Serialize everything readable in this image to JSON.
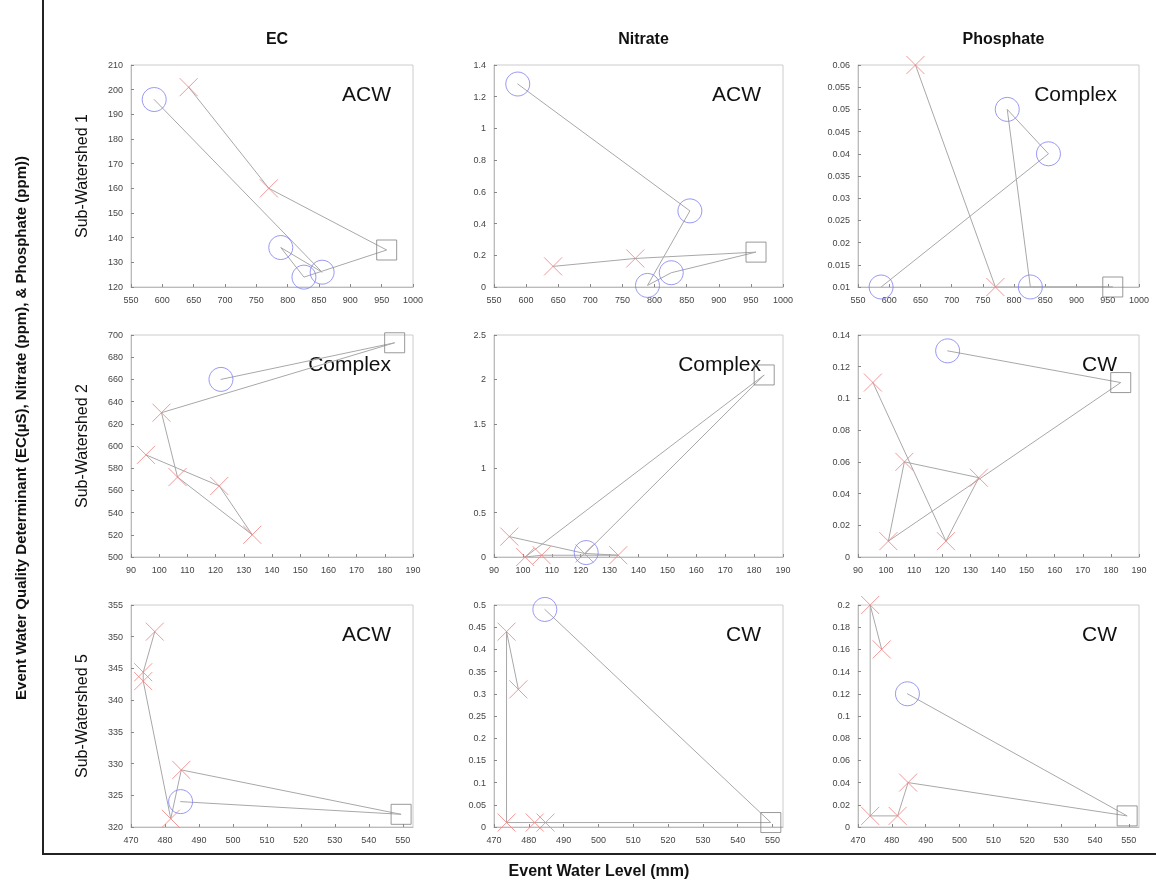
{
  "chart_data": [
    {
      "type": "line",
      "title": "EC",
      "ylabel": "Sub-Watershed 1",
      "xlim": [
        550,
        1000
      ],
      "xticks": [
        550,
        600,
        650,
        700,
        750,
        800,
        850,
        900,
        950,
        1000
      ],
      "ylim": [
        120,
        210
      ],
      "yticks": [
        120,
        130,
        140,
        150,
        160,
        170,
        180,
        190,
        200,
        210
      ],
      "annotations": [
        "ACW"
      ],
      "series": [
        {
          "type": "line",
          "marker": "none",
          "color": "#a8a8a8",
          "x": [
            642,
            770,
            958,
            826,
            789,
            855,
            587
          ],
          "values": [
            201,
            160,
            135,
            124,
            136,
            126,
            196
          ]
        },
        {
          "type": "scatter",
          "marker": "cross",
          "color": "#f08080",
          "x": [
            642,
            770
          ],
          "values": [
            201,
            160
          ]
        },
        {
          "type": "scatter",
          "marker": "square",
          "color": "#808080",
          "x": [
            958
          ],
          "values": [
            135
          ]
        },
        {
          "type": "scatter",
          "marker": "circle",
          "color": "#8080f0",
          "x": [
            826,
            789,
            855,
            587
          ],
          "values": [
            124,
            136,
            126,
            196
          ]
        }
      ]
    },
    {
      "type": "line",
      "title": "Nitrate",
      "xlim": [
        550,
        1000
      ],
      "xticks": [
        550,
        600,
        650,
        700,
        750,
        800,
        850,
        900,
        950,
        1000
      ],
      "ylim": [
        0,
        1.4
      ],
      "yticks": [
        0,
        0.2,
        0.4,
        0.6,
        0.8,
        1,
        1.2,
        1.4
      ],
      "annotations": [
        "ACW"
      ],
      "series": [
        {
          "type": "line",
          "marker": "none",
          "color": "#a8a8a8",
          "x": [
            642,
            770,
            958,
            826,
            789,
            855,
            587
          ],
          "values": [
            0.13,
            0.18,
            0.22,
            0.09,
            0.01,
            0.48,
            1.28
          ]
        },
        {
          "type": "scatter",
          "marker": "cross",
          "color": "#f08080",
          "x": [
            642,
            770
          ],
          "values": [
            0.13,
            0.18
          ]
        },
        {
          "type": "scatter",
          "marker": "square",
          "color": "#808080",
          "x": [
            958
          ],
          "values": [
            0.22
          ]
        },
        {
          "type": "scatter",
          "marker": "circle",
          "color": "#8080f0",
          "x": [
            826,
            789,
            855,
            587
          ],
          "values": [
            0.09,
            0.01,
            0.48,
            1.28
          ]
        }
      ]
    },
    {
      "type": "line",
      "title": "Phosphate",
      "xlim": [
        550,
        1000
      ],
      "xticks": [
        550,
        600,
        650,
        700,
        750,
        800,
        850,
        900,
        950,
        1000
      ],
      "ylim": [
        0.01,
        0.06
      ],
      "yticks": [
        0.01,
        0.015,
        0.02,
        0.025,
        0.03,
        0.035,
        0.04,
        0.045,
        0.05,
        0.055,
        0.06
      ],
      "annotations": [
        "Complex"
      ],
      "series": [
        {
          "type": "line",
          "marker": "none",
          "color": "#a8a8a8",
          "x": [
            642,
            770,
            958,
            826,
            789,
            855,
            587
          ],
          "values": [
            0.06,
            0.01,
            0.01,
            0.01,
            0.05,
            0.04,
            0.01
          ]
        },
        {
          "type": "scatter",
          "marker": "cross",
          "color": "#f08080",
          "x": [
            642,
            770
          ],
          "values": [
            0.06,
            0.01
          ]
        },
        {
          "type": "scatter",
          "marker": "square",
          "color": "#808080",
          "x": [
            958
          ],
          "values": [
            0.01
          ]
        },
        {
          "type": "scatter",
          "marker": "circle",
          "color": "#8080f0",
          "x": [
            826,
            789,
            855,
            587
          ],
          "values": [
            0.01,
            0.05,
            0.04,
            0.01
          ]
        }
      ]
    },
    {
      "type": "line",
      "ylabel": "Sub-Watershed 2",
      "xlim": [
        90,
        190
      ],
      "xticks": [
        90,
        100,
        110,
        120,
        130,
        140,
        150,
        160,
        170,
        180,
        190
      ],
      "ylim": [
        500,
        700
      ],
      "yticks": [
        500,
        520,
        540,
        560,
        580,
        600,
        620,
        640,
        660,
        680,
        700
      ],
      "annotations": [
        "Complex",
        "Event Water Quality Determinant (EC(µS), Nitrate (ppm), & Phosphate (ppm))"
      ],
      "series": [
        {
          "type": "line",
          "marker": "none",
          "color": "#a8a8a8",
          "x": [
            95.3,
            121.3,
            133,
            106.5,
            100.8,
            183.5,
            121.9
          ],
          "values": [
            592,
            564,
            520,
            572,
            630,
            693,
            660
          ]
        },
        {
          "type": "scatter",
          "marker": "cross",
          "color": "#f08080",
          "x": [
            95.3,
            121.3,
            133,
            106.5,
            100.8
          ],
          "values": [
            592,
            564,
            520,
            572,
            630
          ]
        },
        {
          "type": "scatter",
          "marker": "square",
          "color": "#808080",
          "x": [
            183.5
          ],
          "values": [
            693
          ]
        },
        {
          "type": "scatter",
          "marker": "circle",
          "color": "#8080f0",
          "x": [
            121.9
          ],
          "values": [
            660
          ]
        }
      ]
    },
    {
      "type": "line",
      "xlim": [
        90,
        190
      ],
      "xticks": [
        90,
        100,
        110,
        120,
        130,
        140,
        150,
        160,
        170,
        180,
        190
      ],
      "ylim": [
        0,
        2.5
      ],
      "yticks": [
        0,
        0.5,
        1,
        1.5,
        2,
        2.5
      ],
      "annotations": [
        "Complex"
      ],
      "series": [
        {
          "type": "line",
          "marker": "none",
          "color": "#a8a8a8",
          "x": [
            95.3,
            121.3,
            133,
            106.5,
            100.8,
            183.5,
            121.9
          ],
          "values": [
            0.23,
            0.04,
            0.02,
            0.02,
            0,
            2.05,
            0.05
          ]
        },
        {
          "type": "scatter",
          "marker": "cross",
          "color": "#f08080",
          "x": [
            95.3,
            121.3,
            133,
            106.5,
            100.8
          ],
          "values": [
            0.23,
            0.04,
            0.02,
            0.02,
            0
          ]
        },
        {
          "type": "scatter",
          "marker": "square",
          "color": "#808080",
          "x": [
            183.5
          ],
          "values": [
            2.05
          ]
        },
        {
          "type": "scatter",
          "marker": "circle",
          "color": "#8080f0",
          "x": [
            121.9
          ],
          "values": [
            0.05
          ]
        }
      ]
    },
    {
      "type": "line",
      "xlim": [
        90,
        190
      ],
      "xticks": [
        90,
        100,
        110,
        120,
        130,
        140,
        150,
        160,
        170,
        180,
        190
      ],
      "ylim": [
        0,
        0.14
      ],
      "yticks": [
        0,
        0.02,
        0.04,
        0.06,
        0.08,
        0.1,
        0.12,
        0.14
      ],
      "annotations": [
        "CW"
      ],
      "series": [
        {
          "type": "line",
          "marker": "none",
          "color": "#a8a8a8",
          "x": [
            95.3,
            121.3,
            133,
            106.5,
            100.8,
            183.5,
            121.9
          ],
          "values": [
            0.11,
            0.01,
            0.05,
            0.06,
            0.01,
            0.11,
            0.13
          ]
        },
        {
          "type": "scatter",
          "marker": "cross",
          "color": "#f08080",
          "x": [
            95.3,
            121.3,
            133,
            106.5,
            100.8
          ],
          "values": [
            0.11,
            0.01,
            0.05,
            0.06,
            0.01
          ]
        },
        {
          "type": "scatter",
          "marker": "square",
          "color": "#808080",
          "x": [
            183.5
          ],
          "values": [
            0.11
          ]
        },
        {
          "type": "scatter",
          "marker": "circle",
          "color": "#8080f0",
          "x": [
            121.9
          ],
          "values": [
            0.13
          ]
        }
      ]
    },
    {
      "type": "line",
      "ylabel": "Sub-Watershed 5",
      "xlim": [
        470,
        553
      ],
      "xticks": [
        470,
        480,
        490,
        500,
        510,
        520,
        530,
        540,
        550
      ],
      "ylim": [
        320,
        355
      ],
      "yticks": [
        320,
        325,
        330,
        335,
        340,
        345,
        350,
        355
      ],
      "annotations": [
        "ACW"
      ],
      "series": [
        {
          "type": "line",
          "marker": "none",
          "color": "#a8a8a8",
          "x": [
            477,
            473.6,
            473.6,
            481.7,
            484.8,
            549.5,
            484.6
          ],
          "values": [
            350.8,
            344.4,
            343,
            321.3,
            329,
            322,
            324
          ]
        },
        {
          "type": "scatter",
          "marker": "cross",
          "color": "#f08080",
          "x": [
            477,
            473.6,
            473.6,
            481.7,
            484.8
          ],
          "values": [
            350.8,
            344.4,
            343,
            321.3,
            329
          ]
        },
        {
          "type": "scatter",
          "marker": "square",
          "color": "#808080",
          "x": [
            549.5
          ],
          "values": [
            322
          ]
        },
        {
          "type": "scatter",
          "marker": "circle",
          "color": "#8080f0",
          "x": [
            484.6
          ],
          "values": [
            324
          ]
        }
      ]
    },
    {
      "type": "line",
      "xlim": [
        470,
        553
      ],
      "xticks": [
        470,
        480,
        490,
        500,
        510,
        520,
        530,
        540,
        550
      ],
      "ylim": [
        0,
        0.5
      ],
      "yticks": [
        0,
        0.05,
        0.1,
        0.15,
        0.2,
        0.25,
        0.3,
        0.35,
        0.4,
        0.45,
        0.5
      ],
      "annotations": [
        "CW",
        "Event Water Level (mm)"
      ],
      "series": [
        {
          "type": "line",
          "marker": "none",
          "color": "#a8a8a8",
          "x": [
            477,
            473.6,
            473.6,
            481.7,
            484.8,
            549.5,
            484.6
          ],
          "values": [
            0.31,
            0.44,
            0.01,
            0.01,
            0.01,
            0.01,
            0.49
          ]
        },
        {
          "type": "scatter",
          "marker": "cross",
          "color": "#f08080",
          "x": [
            477,
            473.6,
            473.6,
            481.7,
            484.8
          ],
          "values": [
            0.31,
            0.44,
            0.01,
            0.01,
            0.01
          ]
        },
        {
          "type": "scatter",
          "marker": "square",
          "color": "#808080",
          "x": [
            549.5
          ],
          "values": [
            0.01
          ]
        },
        {
          "type": "scatter",
          "marker": "circle",
          "color": "#8080f0",
          "x": [
            484.6
          ],
          "values": [
            0.49
          ]
        }
      ]
    },
    {
      "type": "line",
      "xlim": [
        470,
        553
      ],
      "xticks": [
        470,
        480,
        490,
        500,
        510,
        520,
        530,
        540,
        550
      ],
      "ylim": [
        0,
        0.2
      ],
      "yticks": [
        0,
        0.02,
        0.04,
        0.06,
        0.08,
        0.1,
        0.12,
        0.14,
        0.16,
        0.18,
        0.2
      ],
      "annotations": [
        "CW"
      ],
      "series": [
        {
          "type": "line",
          "marker": "none",
          "color": "#a8a8a8",
          "x": [
            477,
            473.6,
            473.6,
            481.7,
            484.8,
            549.5,
            484.6
          ],
          "values": [
            0.16,
            0.2,
            0.01,
            0.01,
            0.04,
            0.01,
            0.12
          ]
        },
        {
          "type": "scatter",
          "marker": "cross",
          "color": "#f08080",
          "x": [
            477,
            473.6,
            473.6,
            481.7,
            484.8
          ],
          "values": [
            0.16,
            0.2,
            0.01,
            0.01,
            0.04
          ]
        },
        {
          "type": "scatter",
          "marker": "square",
          "color": "#808080",
          "x": [
            549.5
          ],
          "values": [
            0.01
          ]
        },
        {
          "type": "scatter",
          "marker": "circle",
          "color": "#8080f0",
          "x": [
            484.6
          ],
          "values": [
            0.12
          ]
        }
      ]
    }
  ]
}
